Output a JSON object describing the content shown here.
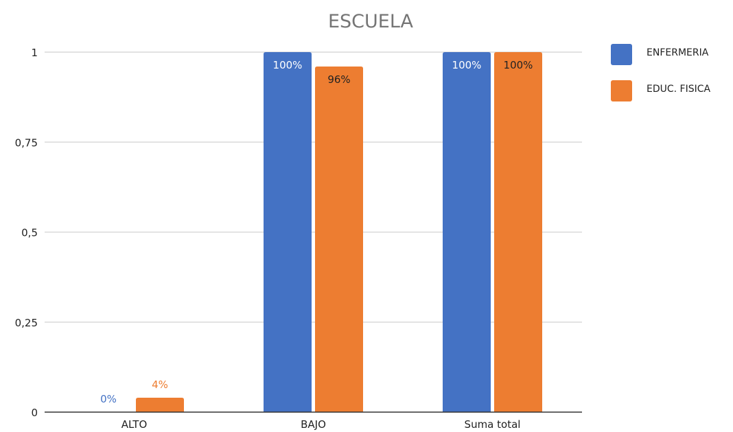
{
  "chart_data": {
    "type": "bar",
    "title": "ESCUELA",
    "xlabel": "",
    "ylabel": "",
    "ylim": [
      0,
      1
    ],
    "yticks": [
      "0",
      "0,25",
      "0,5",
      "0,75",
      "1"
    ],
    "yticks_values": [
      0,
      0.25,
      0.5,
      0.75,
      1
    ],
    "grid": true,
    "legend_position": "right",
    "categories": [
      "ALTO",
      "BAJO",
      "Suma total"
    ],
    "series": [
      {
        "name": "ENFERMERIA",
        "color": "#4472C4",
        "values": [
          0,
          1,
          1
        ],
        "labels": [
          "0%",
          "100%",
          "100%"
        ]
      },
      {
        "name": "EDUC. FISICA",
        "color": "#ED7D31",
        "values": [
          0.04,
          0.96,
          1
        ],
        "labels": [
          "4%",
          "96%",
          "100%"
        ]
      }
    ]
  }
}
